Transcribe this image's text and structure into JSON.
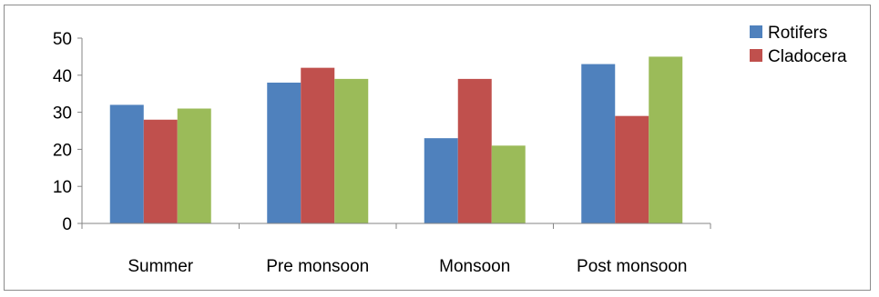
{
  "chart_data": {
    "type": "bar",
    "categories": [
      "Summer",
      "Pre monsoon",
      "Monsoon",
      "Post monsoon"
    ],
    "series": [
      {
        "name": "Rotifers",
        "values": [
          32,
          38,
          23,
          43
        ],
        "color": "#4f81bd"
      },
      {
        "name": "Cladocera",
        "values": [
          28,
          42,
          39,
          29
        ],
        "color": "#c0504d"
      },
      {
        "values": [
          31,
          39,
          21,
          45
        ],
        "color": "#9bbb59"
      }
    ],
    "yticks": [
      0,
      10,
      20,
      30,
      40,
      50
    ],
    "ylim": [
      0,
      50
    ],
    "grid": false,
    "legend_position": "top-right"
  }
}
